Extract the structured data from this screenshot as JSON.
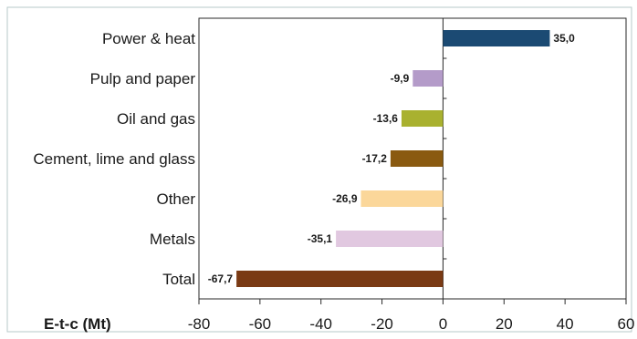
{
  "chart_data": {
    "type": "bar",
    "orientation": "horizontal",
    "title": "",
    "xlabel": "E-t-c (Mt)",
    "ylabel": "",
    "xlim": [
      -80,
      60
    ],
    "x_ticks": [
      -80,
      -60,
      -40,
      -20,
      0,
      20,
      40,
      60
    ],
    "x_tick_labels": [
      "-80",
      "-60",
      "-40",
      "-20",
      "0",
      "20",
      "40",
      "60"
    ],
    "grid": false,
    "legend": "none",
    "categories": [
      "Power & heat",
      "Pulp and paper",
      "Oil and gas",
      "Cement, lime and glass",
      "Other",
      "Metals",
      "Total"
    ],
    "values": [
      35.0,
      -9.9,
      -13.6,
      -17.2,
      -26.9,
      -35.1,
      -67.7
    ],
    "value_labels": [
      "35,0",
      "-9,9",
      "-13,6",
      "-17,2",
      "-26,9",
      "-35,1",
      "-67,7"
    ],
    "colors": [
      "#1b4a73",
      "#b49bc9",
      "#a9b12f",
      "#8a5a10",
      "#fbd79a",
      "#e1c8e0",
      "#7a3a14"
    ]
  },
  "colors": {
    "frame": "#b7c9c9",
    "axis": "#2a2a2a"
  }
}
